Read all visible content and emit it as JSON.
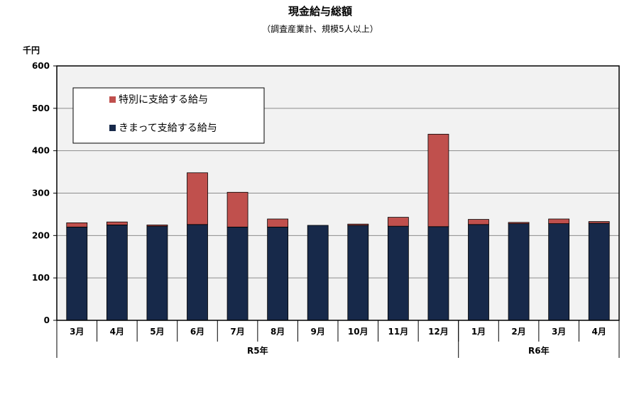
{
  "colors": {
    "regular": "#17294a",
    "special": "#c0504d",
    "plot_bg": "#f2f2f2"
  },
  "chart_data": {
    "type": "bar",
    "stacked": true,
    "title": "現金給与総額",
    "subtitle": "（調査産業計、規模5人以上）",
    "ylabel": "千円",
    "ylim": [
      0,
      600
    ],
    "yticks": [
      0,
      100,
      200,
      300,
      400,
      500,
      600
    ],
    "grid": true,
    "legend_position": "top-left",
    "categories": [
      "3月",
      "4月",
      "5月",
      "6月",
      "7月",
      "8月",
      "9月",
      "10月",
      "11月",
      "12月",
      "1月",
      "2月",
      "3月",
      "4月"
    ],
    "groups": [
      {
        "label": "R5年",
        "start": 0,
        "end": 9
      },
      {
        "label": "R6年",
        "start": 10,
        "end": 13
      }
    ],
    "series": [
      {
        "name": "きまって支給する給与",
        "values": [
          220,
          225,
          222,
          226,
          220,
          220,
          224,
          224,
          222,
          221,
          226,
          228,
          228,
          229
        ]
      },
      {
        "name": "特別に支給する給与",
        "values": [
          10,
          7,
          3,
          122,
          82,
          19,
          0,
          3,
          21,
          218,
          12,
          3,
          11,
          4
        ]
      }
    ]
  }
}
